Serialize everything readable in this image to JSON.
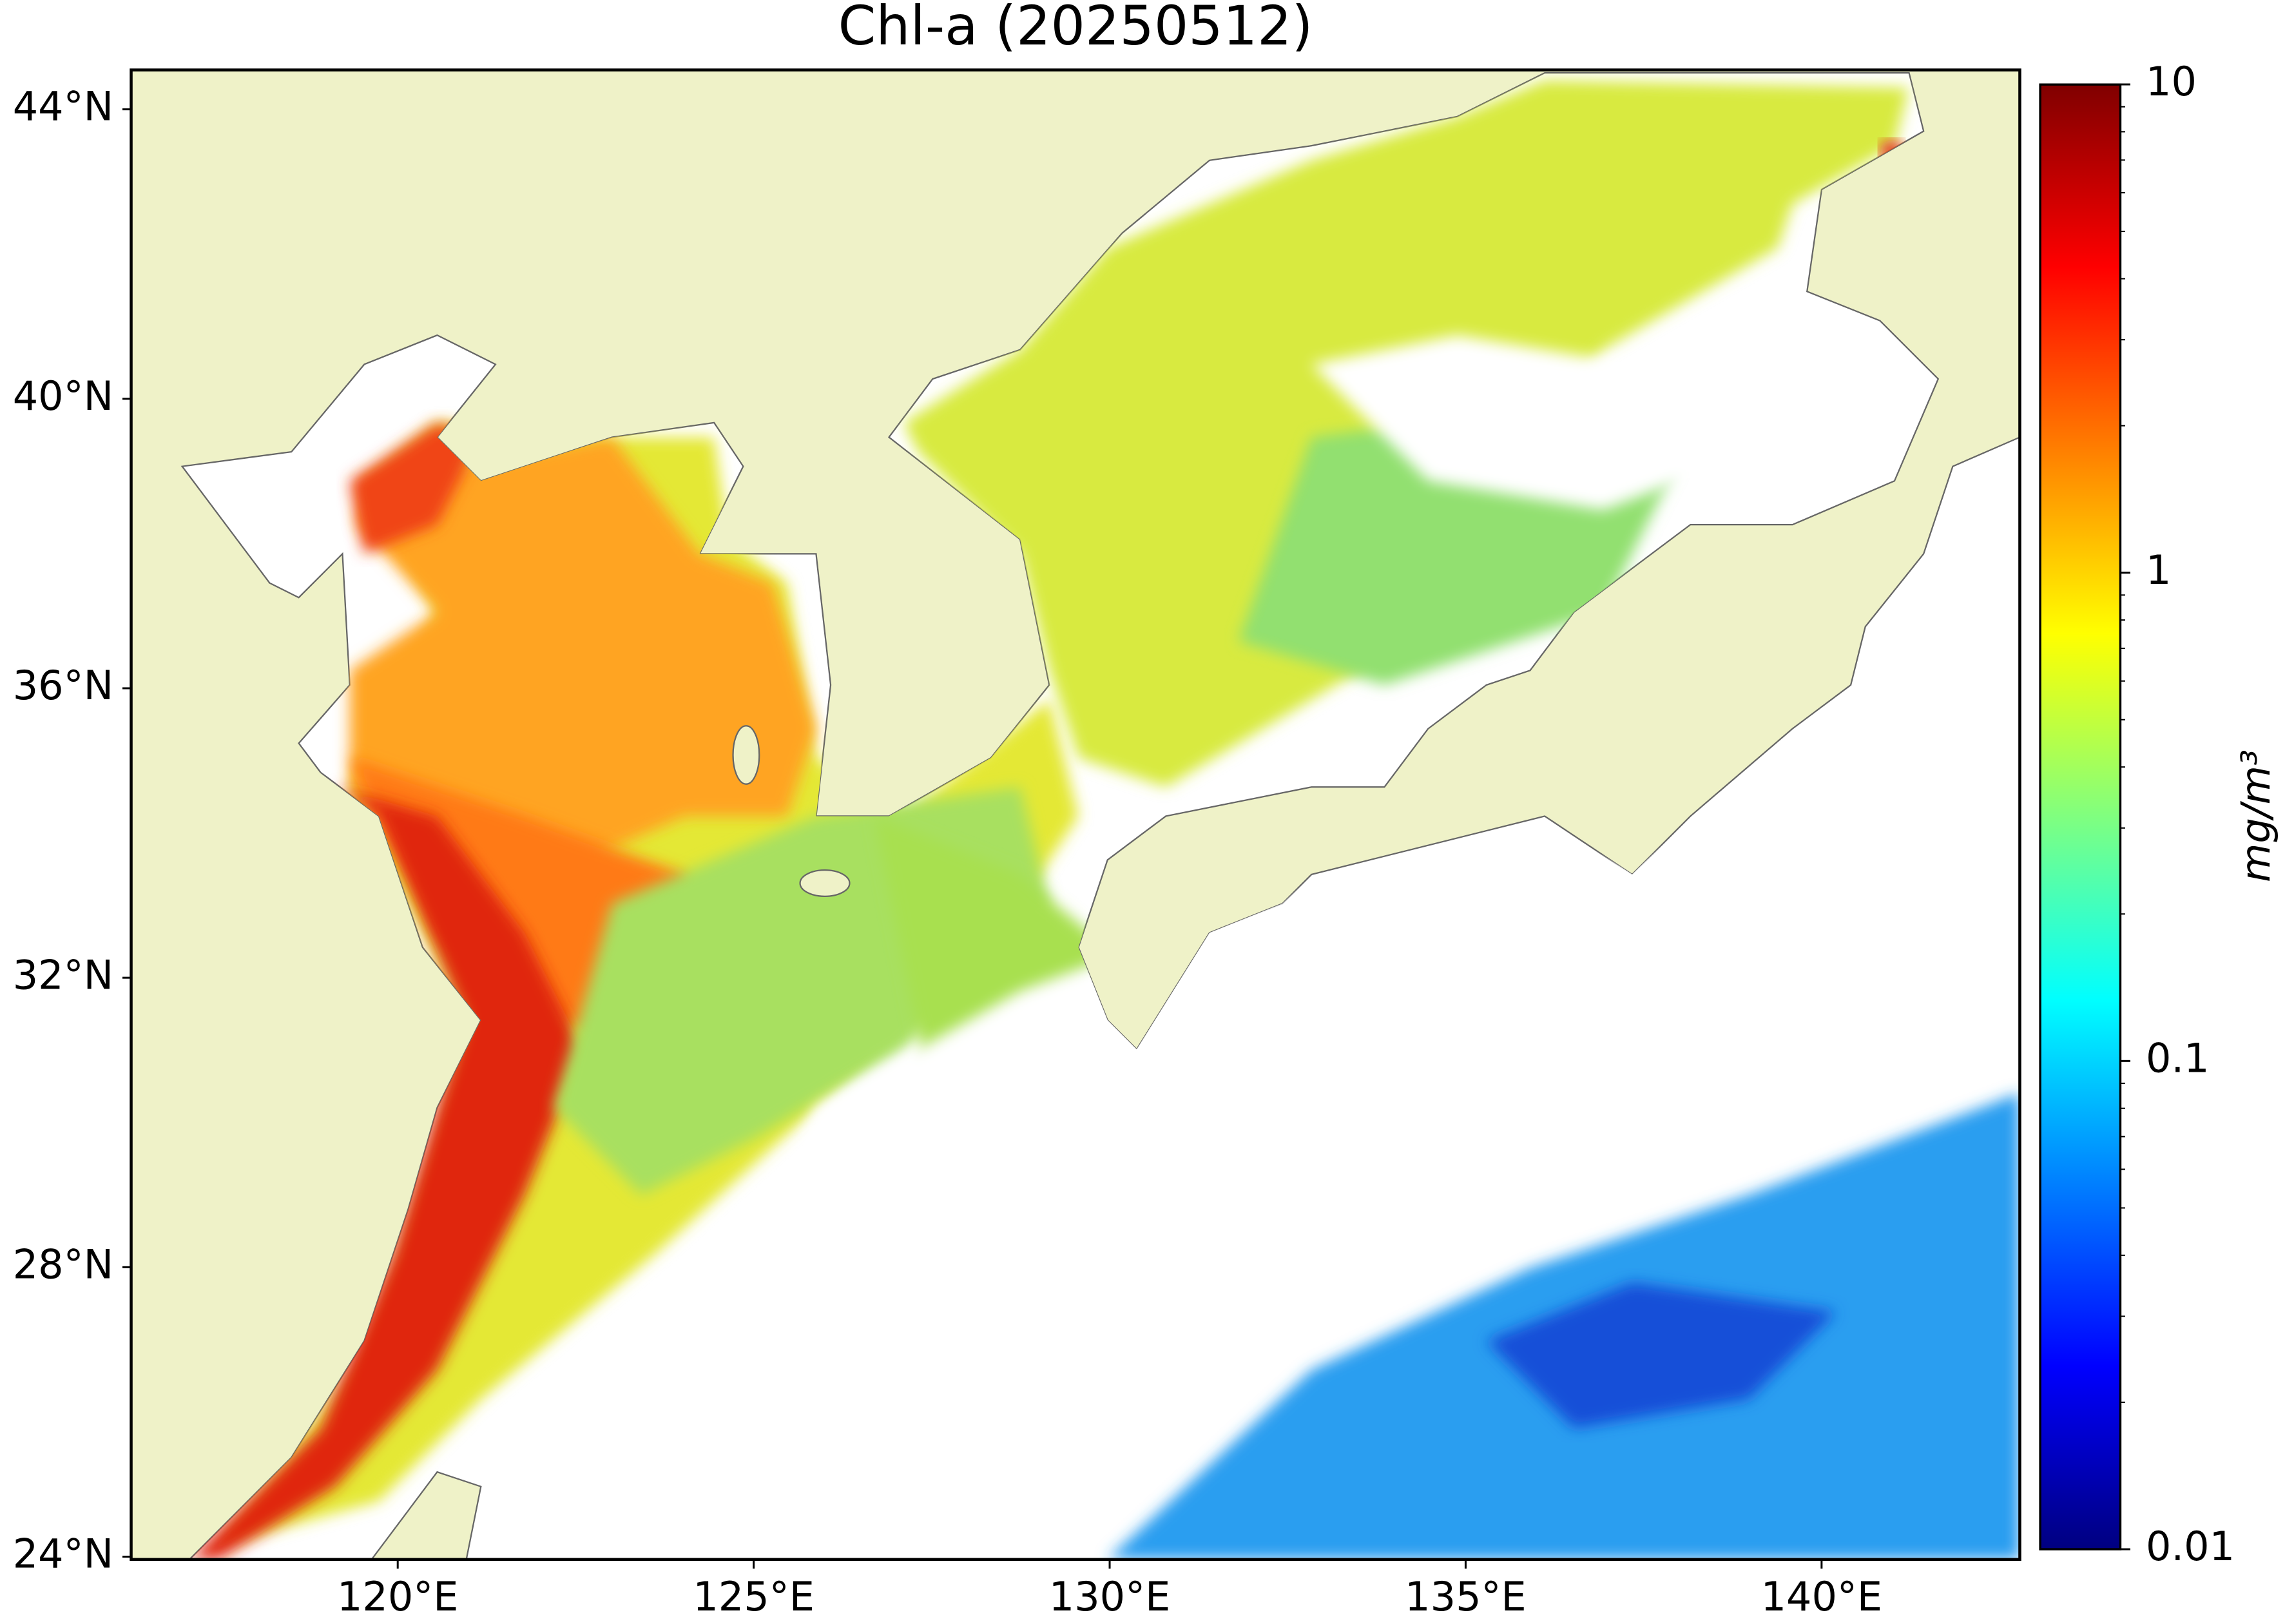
{
  "chart_data": {
    "type": "map",
    "title": "Chl-a (20250512)",
    "xlim": [
      116.26,
      142.78
    ],
    "ylim": [
      23.96,
      44.54
    ],
    "xticks": [
      {
        "value": 120,
        "label": "120°E"
      },
      {
        "value": 125,
        "label": "125°E"
      },
      {
        "value": 130,
        "label": "130°E"
      },
      {
        "value": 135,
        "label": "135°E"
      },
      {
        "value": 140,
        "label": "140°E"
      }
    ],
    "yticks": [
      {
        "value": 24,
        "label": "24°N"
      },
      {
        "value": 28,
        "label": "28°N"
      },
      {
        "value": 32,
        "label": "32°N"
      },
      {
        "value": 36,
        "label": "36°N"
      },
      {
        "value": 40,
        "label": "40°N"
      },
      {
        "value": 44,
        "label": "44°N"
      }
    ],
    "colorbar": {
      "label": "mg/m³",
      "scale": "log",
      "lim": [
        0.01,
        10
      ],
      "ticks": [
        0.01,
        0.1,
        1,
        10
      ],
      "colormap": "jet"
    }
  }
}
